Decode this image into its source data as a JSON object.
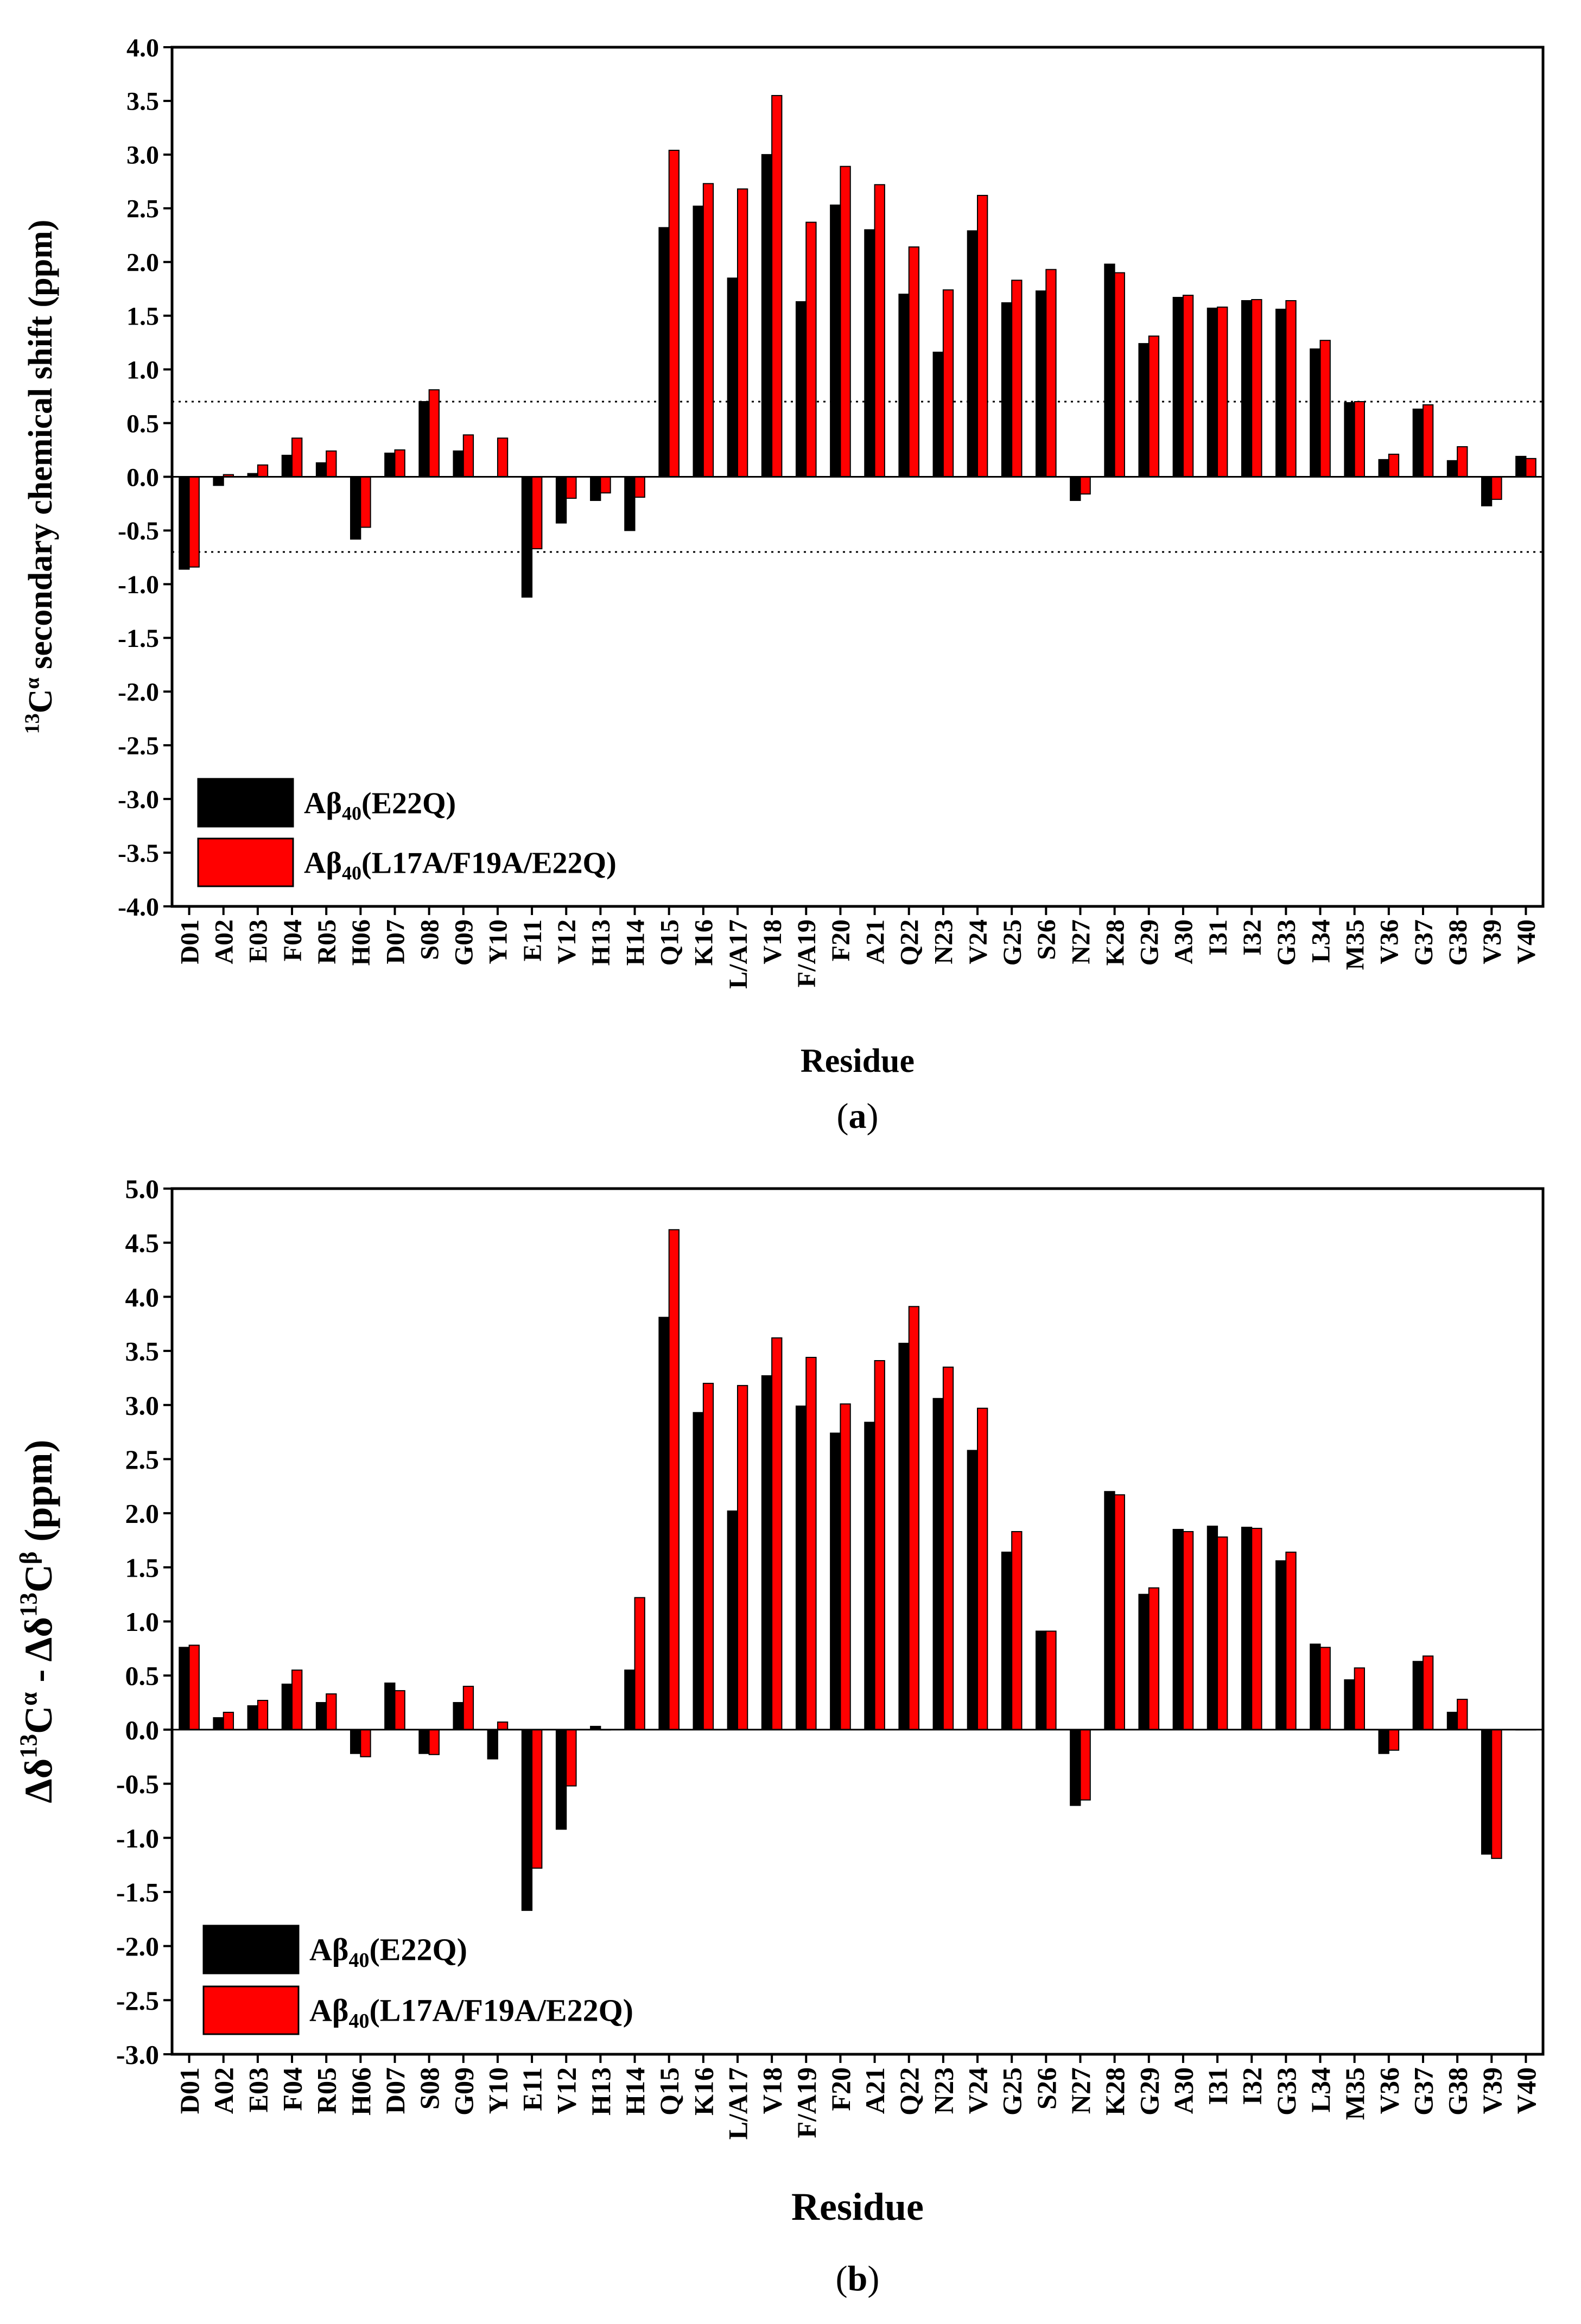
{
  "colors": {
    "series1": "#000000",
    "series2": "#ff0000",
    "axis": "#000000",
    "reference": "#000000"
  },
  "chart_data": [
    {
      "type": "bar",
      "panel_label": "(a)",
      "ylabel": "13Cα secondary chemical shift (ppm)",
      "ylabel_parts": {
        "sup": "13",
        "base": "C",
        "greek_sup": "α",
        "rest": " secondary chemical shift (ppm)"
      },
      "xlabel": "Residue",
      "ylim": [
        -4.0,
        4.0
      ],
      "yticks": [
        "-4.0",
        "-3.5",
        "-3.0",
        "-2.5",
        "-2.0",
        "-1.5",
        "-1.0",
        "-0.5",
        "0.0",
        "0.5",
        "1.0",
        "1.5",
        "2.0",
        "2.5",
        "3.0",
        "3.5",
        "4.0"
      ],
      "reference_lines": [
        0.7,
        -0.7
      ],
      "legend_position": "bottom-left",
      "categories": [
        "D01",
        "A02",
        "E03",
        "F04",
        "R05",
        "H06",
        "D07",
        "S08",
        "G09",
        "Y10",
        "E11",
        "V12",
        "H13",
        "H14",
        "Q15",
        "K16",
        "L/A17",
        "V18",
        "F/A19",
        "F20",
        "A21",
        "Q22",
        "N23",
        "V24",
        "G25",
        "S26",
        "N27",
        "K28",
        "G29",
        "A30",
        "I31",
        "I32",
        "G33",
        "L34",
        "M35",
        "V36",
        "G37",
        "G38",
        "V39",
        "V40"
      ],
      "series": [
        {
          "name": "Aβ40(E22Q)",
          "legend": {
            "pre": "Aβ",
            "sub": "40",
            "post": "(E22Q)"
          },
          "values": [
            -0.86,
            -0.08,
            0.03,
            0.2,
            0.13,
            -0.58,
            0.22,
            0.7,
            0.24,
            0.0,
            -1.12,
            -0.43,
            -0.22,
            -0.5,
            2.32,
            2.52,
            1.85,
            3.0,
            1.63,
            2.53,
            2.3,
            1.7,
            1.16,
            2.29,
            1.62,
            1.73,
            -0.22,
            1.98,
            1.24,
            1.67,
            1.57,
            1.64,
            1.56,
            1.19,
            0.69,
            0.16,
            0.63,
            0.15,
            -0.27,
            0.19
          ]
        },
        {
          "name": "Aβ40(L17A/F19A/E22Q)",
          "legend": {
            "pre": "Aβ",
            "sub": "40",
            "post": "(L17A/F19A/E22Q)"
          },
          "values": [
            -0.84,
            0.02,
            0.11,
            0.36,
            0.24,
            -0.47,
            0.25,
            0.81,
            0.39,
            0.36,
            -0.67,
            -0.2,
            -0.15,
            -0.19,
            3.04,
            2.73,
            2.68,
            3.55,
            2.37,
            2.89,
            2.72,
            2.14,
            1.74,
            2.62,
            1.83,
            1.93,
            -0.16,
            1.9,
            1.31,
            1.69,
            1.58,
            1.65,
            1.64,
            1.27,
            0.7,
            0.21,
            0.67,
            0.28,
            -0.21,
            0.17
          ]
        }
      ]
    },
    {
      "type": "bar",
      "panel_label": "(b)",
      "ylabel": "Δδ13Cα - Δδ13Cβ (ppm)",
      "ylabel_parts": {
        "p1": "Δδ",
        "sup1": "13",
        "base1": "C",
        "greek1": "α",
        "mid": " - Δδ",
        "sup2": "13",
        "base2": "C",
        "greek2": "β",
        "rest": " (ppm)"
      },
      "xlabel": "Residue",
      "ylim": [
        -3.0,
        5.0
      ],
      "yticks": [
        "-3.0",
        "-2.5",
        "-2.0",
        "-1.5",
        "-1.0",
        "-0.5",
        "0.0",
        "0.5",
        "1.0",
        "1.5",
        "2.0",
        "2.5",
        "3.0",
        "3.5",
        "4.0",
        "4.5",
        "5.0"
      ],
      "reference_lines": [],
      "legend_position": "bottom-left",
      "categories": [
        "D01",
        "A02",
        "E03",
        "F04",
        "R05",
        "H06",
        "D07",
        "S08",
        "G09",
        "Y10",
        "E11",
        "V12",
        "H13",
        "H14",
        "Q15",
        "K16",
        "L/A17",
        "V18",
        "F/A19",
        "F20",
        "A21",
        "Q22",
        "N23",
        "V24",
        "G25",
        "S26",
        "N27",
        "K28",
        "G29",
        "A30",
        "I31",
        "I32",
        "G33",
        "L34",
        "M35",
        "V36",
        "G37",
        "G38",
        "V39",
        "V40"
      ],
      "series": [
        {
          "name": "Aβ40(E22Q)",
          "legend": {
            "pre": "Aβ",
            "sub": "40",
            "post": "(E22Q)"
          },
          "values": [
            0.76,
            0.11,
            0.22,
            0.42,
            0.25,
            -0.22,
            0.43,
            -0.22,
            0.25,
            -0.27,
            -1.67,
            -0.92,
            0.03,
            0.55,
            3.81,
            2.93,
            2.02,
            3.27,
            2.99,
            2.74,
            2.84,
            3.57,
            3.06,
            2.58,
            1.64,
            0.91,
            -0.7,
            2.2,
            1.25,
            1.85,
            1.88,
            1.87,
            1.56,
            0.79,
            0.46,
            -0.22,
            0.63,
            0.16,
            -1.15,
            0.0
          ]
        },
        {
          "name": "Aβ40(L17A/F19A/E22Q)",
          "legend": {
            "pre": "Aβ",
            "sub": "40",
            "post": "(L17A/F19A/E22Q)"
          },
          "values": [
            0.78,
            0.16,
            0.27,
            0.55,
            0.33,
            -0.25,
            0.36,
            -0.23,
            0.4,
            0.07,
            -1.28,
            -0.52,
            0.0,
            1.22,
            4.62,
            3.2,
            3.18,
            3.62,
            3.44,
            3.01,
            3.41,
            3.91,
            3.35,
            2.97,
            1.83,
            0.91,
            -0.65,
            2.17,
            1.31,
            1.83,
            1.78,
            1.86,
            1.64,
            0.76,
            0.57,
            -0.19,
            0.68,
            0.28,
            -1.19,
            0.0
          ]
        }
      ]
    }
  ]
}
